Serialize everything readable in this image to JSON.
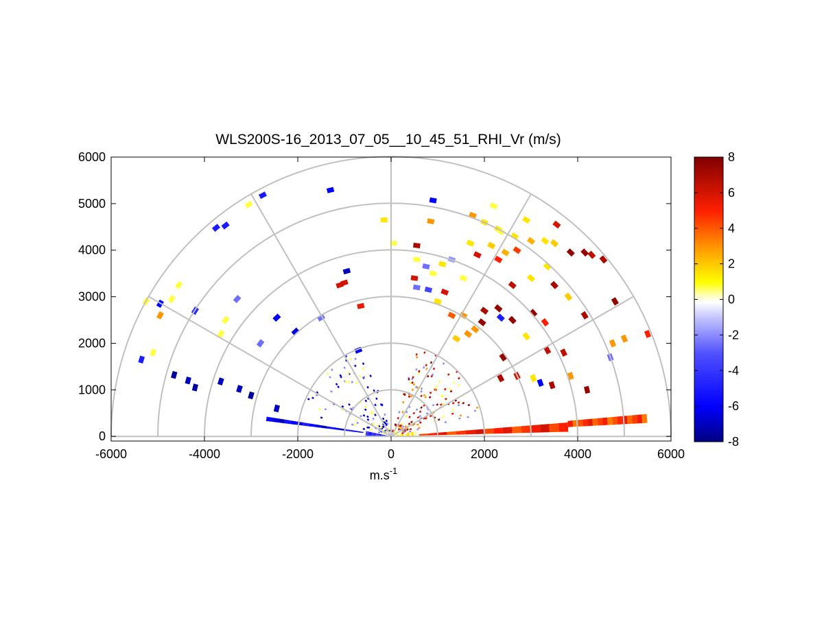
{
  "chart_data": {
    "type": "heatmap",
    "title": "WLS200S-16_2013_07_05__10_45_51_RHI_Vr (m/s)",
    "xlabel": "m.s",
    "xlabel_superscript": "-1",
    "ylabel": "",
    "xlim": [
      -6000,
      6000
    ],
    "ylim": [
      -100,
      6000
    ],
    "xticks": [
      "-6000",
      "-4000",
      "-2000",
      "0",
      "2000",
      "4000",
      "6000"
    ],
    "yticks": [
      "0",
      "1000",
      "2000",
      "3000",
      "4000",
      "5000",
      "6000"
    ],
    "polar_grid": {
      "range_rings": [
        1000,
        2000,
        3000,
        4000,
        5000,
        6000
      ],
      "spokes_deg": [
        0,
        30,
        60,
        90,
        120,
        150,
        180
      ]
    },
    "colorbar": {
      "min": -8,
      "max": 8,
      "ticks": [
        "8",
        "6",
        "4",
        "2",
        "0",
        "-2",
        "-4",
        "-6",
        "-8"
      ],
      "colormap": [
        "#00007f",
        "#0000ff",
        "#6f6fff",
        "#ffffff",
        "#ffff00",
        "#ff8000",
        "#ff0000",
        "#7f0000"
      ]
    },
    "sectors": [
      {
        "name": "near-field-right",
        "elev_from": 0,
        "elev_to": 12,
        "range_from": 50,
        "range_to": 550,
        "value": 1.0
      },
      {
        "name": "near-field-left",
        "elev_from": 168,
        "elev_to": 180,
        "range_from": 50,
        "range_to": 550,
        "value": -4.5
      },
      {
        "name": "low-right-band",
        "elev_from": 1.5,
        "elev_to": 4.5,
        "range_from": 600,
        "range_to": 3800,
        "value": 5.0
      },
      {
        "name": "low-right-far",
        "elev_from": 3.0,
        "elev_to": 5.0,
        "range_from": 3800,
        "range_to": 5500,
        "value": 4.5
      },
      {
        "name": "low-left-band",
        "elev_from": 171,
        "elev_to": 173,
        "range_from": 600,
        "range_to": 2700,
        "value": -6.0
      }
    ],
    "scatter_points": [
      {
        "x": -5350,
        "y": 1650,
        "v": -5.0
      },
      {
        "x": -5100,
        "y": 1800,
        "v": 0.8
      },
      {
        "x": -4650,
        "y": 1320,
        "v": -7.5
      },
      {
        "x": -4350,
        "y": 1200,
        "v": -7.0
      },
      {
        "x": -4200,
        "y": 1050,
        "v": -7.5
      },
      {
        "x": -3650,
        "y": 1180,
        "v": -7.0
      },
      {
        "x": -3250,
        "y": 1020,
        "v": -7.0
      },
      {
        "x": -3000,
        "y": 880,
        "v": -7.5
      },
      {
        "x": -2450,
        "y": 600,
        "v": -7.0
      },
      {
        "x": -5250,
        "y": 2900,
        "v": 0.8
      },
      {
        "x": -4950,
        "y": 2850,
        "v": -6.0
      },
      {
        "x": -4950,
        "y": 2600,
        "v": 3.0
      },
      {
        "x": -4700,
        "y": 2950,
        "v": 0.8
      },
      {
        "x": -4550,
        "y": 3250,
        "v": 0.8
      },
      {
        "x": -4200,
        "y": 2700,
        "v": -4.5
      },
      {
        "x": -3650,
        "y": 2200,
        "v": 0.8
      },
      {
        "x": -3550,
        "y": 2500,
        "v": 0.8
      },
      {
        "x": -3300,
        "y": 2950,
        "v": -2.5
      },
      {
        "x": -2800,
        "y": 2000,
        "v": -2.5
      },
      {
        "x": -2450,
        "y": 2550,
        "v": -6.0
      },
      {
        "x": -2050,
        "y": 2250,
        "v": -6.5
      },
      {
        "x": -1500,
        "y": 2550,
        "v": -2.5
      },
      {
        "x": -700,
        "y": 1850,
        "v": -6.0
      },
      {
        "x": -3750,
        "y": 4480,
        "v": -5.0
      },
      {
        "x": -3550,
        "y": 4530,
        "v": -5.0
      },
      {
        "x": -3050,
        "y": 4980,
        "v": 0.8
      },
      {
        "x": -2750,
        "y": 5180,
        "v": -5.0
      },
      {
        "x": -1300,
        "y": 5290,
        "v": -6.0
      },
      {
        "x": -950,
        "y": 3550,
        "v": -7.0
      },
      {
        "x": -1000,
        "y": 3300,
        "v": 6.0
      },
      {
        "x": -1100,
        "y": 3250,
        "v": 6.0
      },
      {
        "x": -650,
        "y": 2800,
        "v": 5.5
      },
      {
        "x": -150,
        "y": 4650,
        "v": 1.5
      },
      {
        "x": 50,
        "y": 4150,
        "v": 0.8
      },
      {
        "x": 900,
        "y": 5070,
        "v": -6.0
      },
      {
        "x": 850,
        "y": 4620,
        "v": 3.0
      },
      {
        "x": 550,
        "y": 3800,
        "v": 0.8
      },
      {
        "x": 500,
        "y": 3400,
        "v": 6.0
      },
      {
        "x": 550,
        "y": 3200,
        "v": -2.5
      },
      {
        "x": 550,
        "y": 4100,
        "v": 7.0
      },
      {
        "x": 750,
        "y": 3650,
        "v": -2.5
      },
      {
        "x": 900,
        "y": 3500,
        "v": 0.8
      },
      {
        "x": 1300,
        "y": 3800,
        "v": -1.8
      },
      {
        "x": 1100,
        "y": 3700,
        "v": 1.5
      },
      {
        "x": 1550,
        "y": 3400,
        "v": 0.8
      },
      {
        "x": 800,
        "y": 3150,
        "v": -3.5
      },
      {
        "x": 1000,
        "y": 2900,
        "v": 1.5
      },
      {
        "x": 1150,
        "y": 3100,
        "v": 6.0
      },
      {
        "x": 1300,
        "y": 2600,
        "v": 4.0
      },
      {
        "x": 1550,
        "y": 2600,
        "v": 3.0
      },
      {
        "x": 2000,
        "y": 2700,
        "v": 7.0
      },
      {
        "x": 1650,
        "y": 2200,
        "v": 3.0
      },
      {
        "x": 1400,
        "y": 2100,
        "v": 2.0
      },
      {
        "x": 1800,
        "y": 2300,
        "v": 3.0
      },
      {
        "x": 1950,
        "y": 2450,
        "v": 7.5
      },
      {
        "x": 2300,
        "y": 2750,
        "v": 7.5
      },
      {
        "x": 2350,
        "y": 2550,
        "v": -5.0
      },
      {
        "x": 2600,
        "y": 2500,
        "v": 7.5
      },
      {
        "x": 1700,
        "y": 4150,
        "v": 1.5
      },
      {
        "x": 1850,
        "y": 3900,
        "v": 6.0
      },
      {
        "x": 1750,
        "y": 4750,
        "v": 3.0
      },
      {
        "x": 2200,
        "y": 4950,
        "v": 0.8
      },
      {
        "x": 2300,
        "y": 4450,
        "v": 1.5
      },
      {
        "x": 2000,
        "y": 4600,
        "v": 1.5
      },
      {
        "x": 2350,
        "y": 4400,
        "v": 0.8
      },
      {
        "x": 2150,
        "y": 4100,
        "v": 2.0
      },
      {
        "x": 2300,
        "y": 3800,
        "v": 5.0
      },
      {
        "x": 2450,
        "y": 3950,
        "v": 2.5
      },
      {
        "x": 2700,
        "y": 4000,
        "v": 4.5
      },
      {
        "x": 2600,
        "y": 3250,
        "v": 6.5
      },
      {
        "x": 2650,
        "y": 4300,
        "v": 1.5
      },
      {
        "x": 2900,
        "y": 4650,
        "v": 1.5
      },
      {
        "x": 3000,
        "y": 3400,
        "v": 1.5
      },
      {
        "x": 3000,
        "y": 4200,
        "v": 2.5
      },
      {
        "x": 3300,
        "y": 4200,
        "v": 1.5
      },
      {
        "x": 3500,
        "y": 4150,
        "v": 2.0
      },
      {
        "x": 3550,
        "y": 4550,
        "v": 6.0
      },
      {
        "x": 3350,
        "y": 3650,
        "v": 1.5
      },
      {
        "x": 3500,
        "y": 3250,
        "v": 7.0
      },
      {
        "x": 3800,
        "y": 3000,
        "v": 2.0
      },
      {
        "x": 3850,
        "y": 3950,
        "v": 7.5
      },
      {
        "x": 4150,
        "y": 3950,
        "v": 7.5
      },
      {
        "x": 4300,
        "y": 3900,
        "v": 6.5
      },
      {
        "x": 4550,
        "y": 3800,
        "v": 7.0
      },
      {
        "x": 4800,
        "y": 2900,
        "v": 7.5
      },
      {
        "x": 4150,
        "y": 2600,
        "v": 7.0
      },
      {
        "x": 3050,
        "y": 2650,
        "v": 7.5
      },
      {
        "x": 3300,
        "y": 2450,
        "v": 5.0
      },
      {
        "x": 2900,
        "y": 2150,
        "v": 1.5
      },
      {
        "x": 3350,
        "y": 1850,
        "v": 6.5
      },
      {
        "x": 3700,
        "y": 1800,
        "v": 6.5
      },
      {
        "x": 4700,
        "y": 1700,
        "v": -2.5
      },
      {
        "x": 4750,
        "y": 2000,
        "v": 3.0
      },
      {
        "x": 5000,
        "y": 2100,
        "v": 3.0
      },
      {
        "x": 5500,
        "y": 2200,
        "v": 5.0
      },
      {
        "x": 2700,
        "y": 1300,
        "v": 6.0
      },
      {
        "x": 3050,
        "y": 1250,
        "v": 1.5
      },
      {
        "x": 3200,
        "y": 1150,
        "v": -6.0
      },
      {
        "x": 3450,
        "y": 1100,
        "v": 7.0
      },
      {
        "x": 3850,
        "y": 1300,
        "v": 3.0
      },
      {
        "x": 4200,
        "y": 1000,
        "v": 7.5
      },
      {
        "x": 2350,
        "y": 1250,
        "v": 7.0
      },
      {
        "x": 2400,
        "y": 1700,
        "v": 7.5
      }
    ],
    "inner_speckle": {
      "range_from": 100,
      "range_to": 2000,
      "left_values": [
        -7.0,
        -6.5,
        -2.0,
        0.8
      ],
      "right_values": [
        6.0,
        7.5,
        3.0,
        0.8,
        -2.0
      ]
    }
  }
}
